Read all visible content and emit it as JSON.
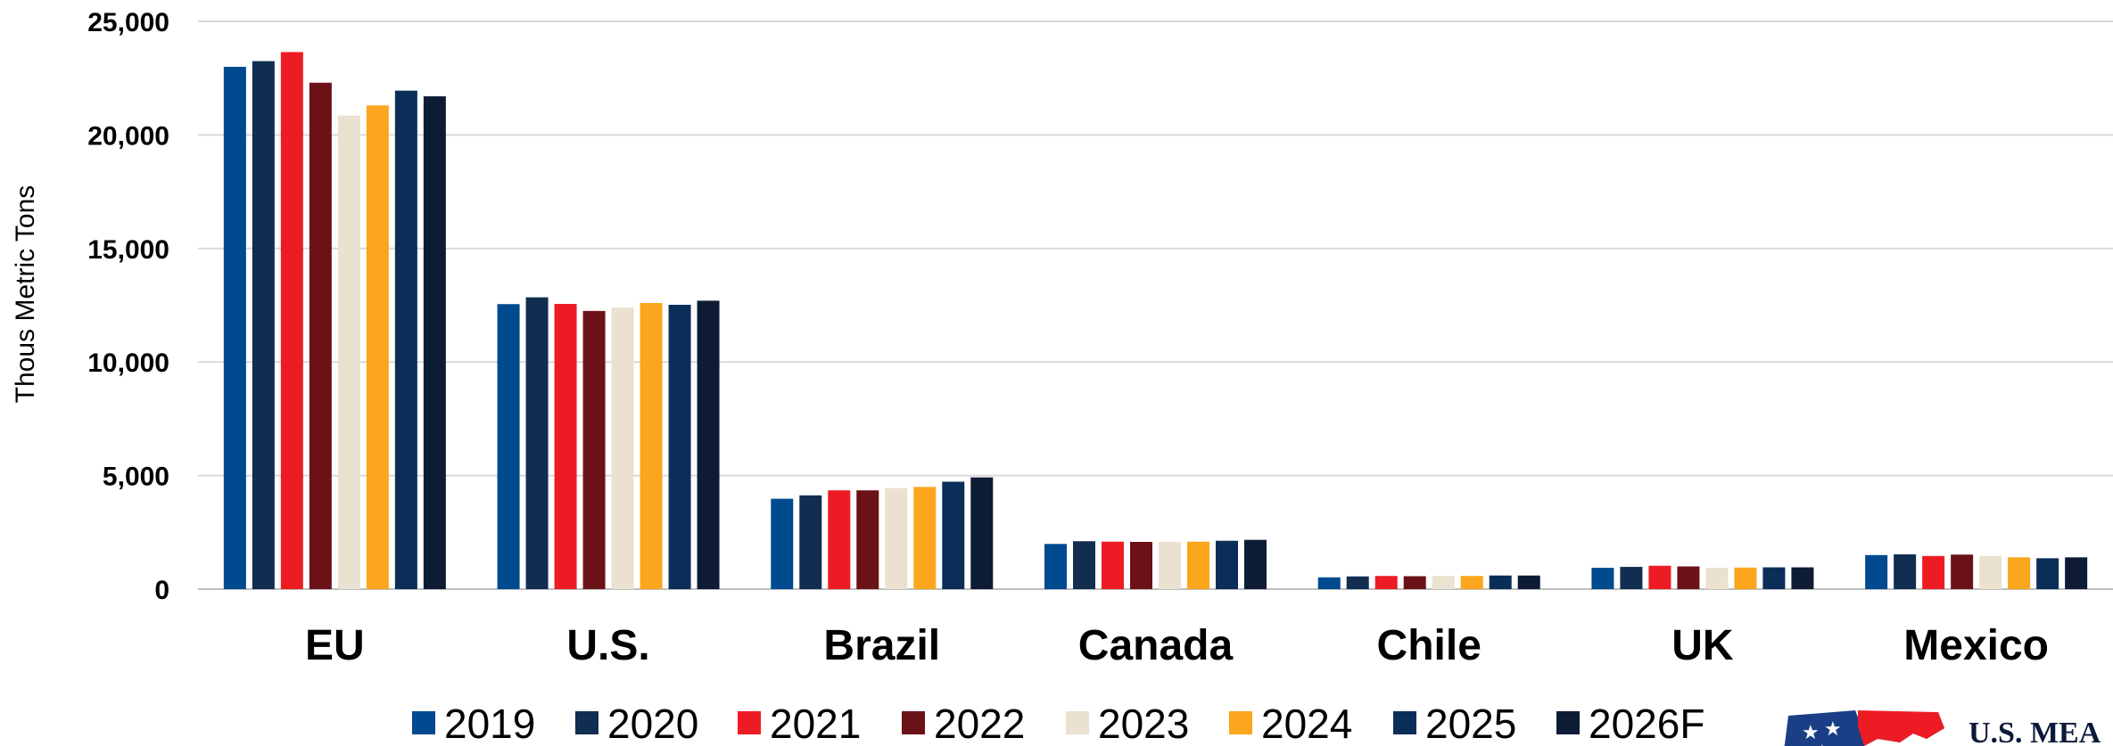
{
  "chart_data": {
    "type": "bar",
    "ylabel": "Thous Metric Tons",
    "ylim": [
      0,
      25000
    ],
    "yticks": [
      0,
      5000,
      10000,
      15000,
      20000,
      25000
    ],
    "ytick_labels": [
      "0",
      "5,000",
      "10,000",
      "15,000",
      "20,000",
      "25,000"
    ],
    "grid": true,
    "legend_position": "bottom",
    "categories": [
      "EU",
      "U.S.",
      "Brazil",
      "Canada",
      "Chile",
      "UK",
      "Mexico"
    ],
    "series": [
      {
        "name": "2019",
        "color": "#004a8f",
        "values": [
          23000,
          12550,
          3980,
          1990,
          520,
          940,
          1500
        ]
      },
      {
        "name": "2020",
        "color": "#112e51",
        "values": [
          23250,
          12850,
          4130,
          2110,
          560,
          980,
          1530
        ]
      },
      {
        "name": "2021",
        "color": "#ed1c24",
        "values": [
          23650,
          12560,
          4350,
          2090,
          580,
          1030,
          1460
        ]
      },
      {
        "name": "2022",
        "color": "#6b1218",
        "values": [
          22300,
          12250,
          4350,
          2080,
          570,
          1000,
          1520
        ]
      },
      {
        "name": "2023",
        "color": "#ebe1d0",
        "values": [
          20850,
          12400,
          4450,
          2080,
          580,
          940,
          1460
        ]
      },
      {
        "name": "2024",
        "color": "#fba61c",
        "values": [
          21300,
          12600,
          4500,
          2090,
          580,
          950,
          1400
        ]
      },
      {
        "name": "2025",
        "color": "#0b2e59",
        "values": [
          21950,
          12520,
          4730,
          2130,
          600,
          960,
          1360
        ]
      },
      {
        "name": "2026F",
        "color": "#0e1b35",
        "values": [
          21700,
          12700,
          4920,
          2170,
          600,
          960,
          1400
        ]
      }
    ]
  },
  "logo": {
    "text": "U.S. MEA"
  }
}
